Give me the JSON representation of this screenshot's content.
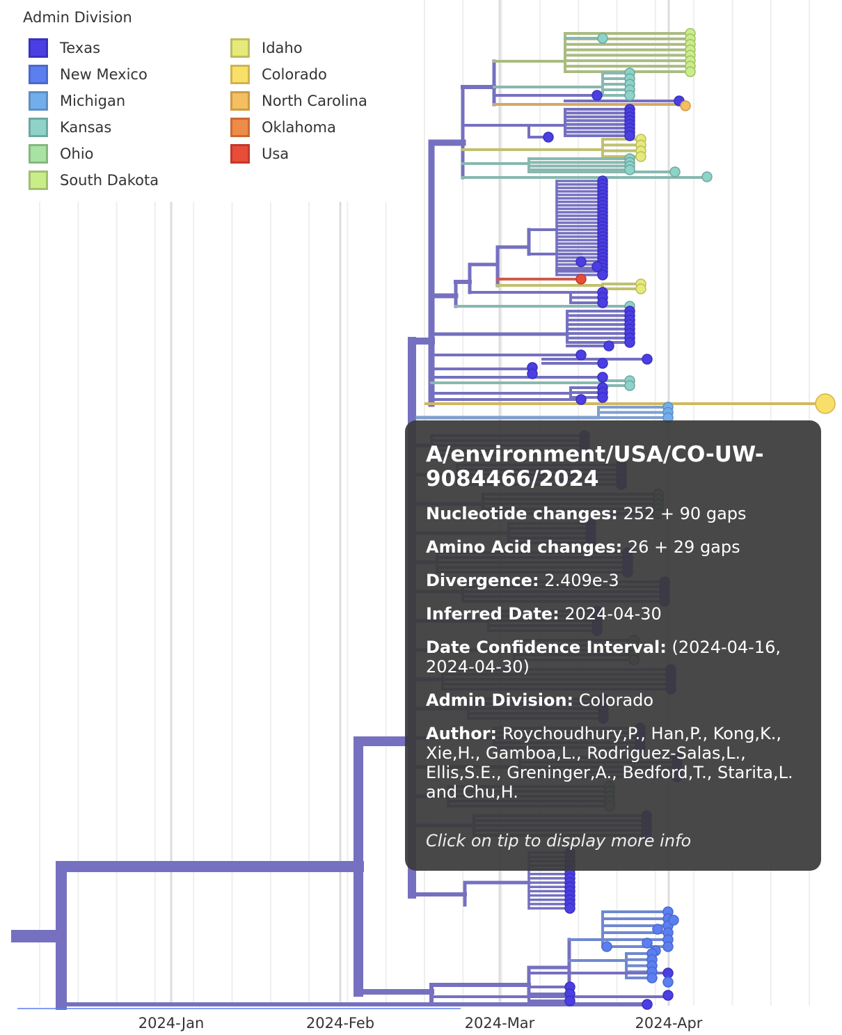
{
  "legend": {
    "title": "Admin Division",
    "items": [
      {
        "label": "Texas",
        "color": "#4b3fe3",
        "border": "#3a2fc0"
      },
      {
        "label": "New Mexico",
        "color": "#5b7ff0",
        "border": "#4a69cc"
      },
      {
        "label": "Michigan",
        "color": "#72aeeb",
        "border": "#5c8fc2"
      },
      {
        "label": "Kansas",
        "color": "#8dd3c8",
        "border": "#6fa8a0"
      },
      {
        "label": "Ohio",
        "color": "#a9e3a3",
        "border": "#86b682"
      },
      {
        "label": "South Dakota",
        "color": "#c9ed88",
        "border": "#a2bf6c"
      },
      {
        "label": "Idaho",
        "color": "#e6ea7a",
        "border": "#bcbd5e"
      },
      {
        "label": "Colorado",
        "color": "#f8df6a",
        "border": "#cfb44e"
      },
      {
        "label": "North Carolina",
        "color": "#f4bf60",
        "border": "#cf9a44"
      },
      {
        "label": "Oklahoma",
        "color": "#ee8a4a",
        "border": "#c96a34"
      },
      {
        "label": "Usa",
        "color": "#e84d3a",
        "border": "#c0392b"
      }
    ]
  },
  "axis": {
    "ticks": [
      "2024-Jan",
      "2024-Feb",
      "2024-Mar",
      "2024-Apr"
    ]
  },
  "tooltip": {
    "title": "A/environment/USA/CO-UW-9084466/2024",
    "rows": [
      {
        "label": "Nucleotide changes:",
        "value": "252 + 90 gaps"
      },
      {
        "label": "Amino Acid changes:",
        "value": "26 + 29 gaps"
      },
      {
        "label": "Divergence:",
        "value": "2.409e-3"
      },
      {
        "label": "Inferred Date:",
        "value": "2024-04-30"
      },
      {
        "label": "Date Confidence Interval:",
        "value": "(2024-04-16, 2024-04-30)"
      },
      {
        "label": "Admin Division:",
        "value": "Colorado"
      },
      {
        "label": "Author:",
        "value": "Roychoudhury,P., Han,P., Kong,K., Xie,H., Gamboa,L., Rodriguez-Salas,L., Ellis,S.E., Greninger,A., Bedford,T., Starita,L. and Chu,H."
      }
    ],
    "footer": "Click on tip to display more info"
  }
}
